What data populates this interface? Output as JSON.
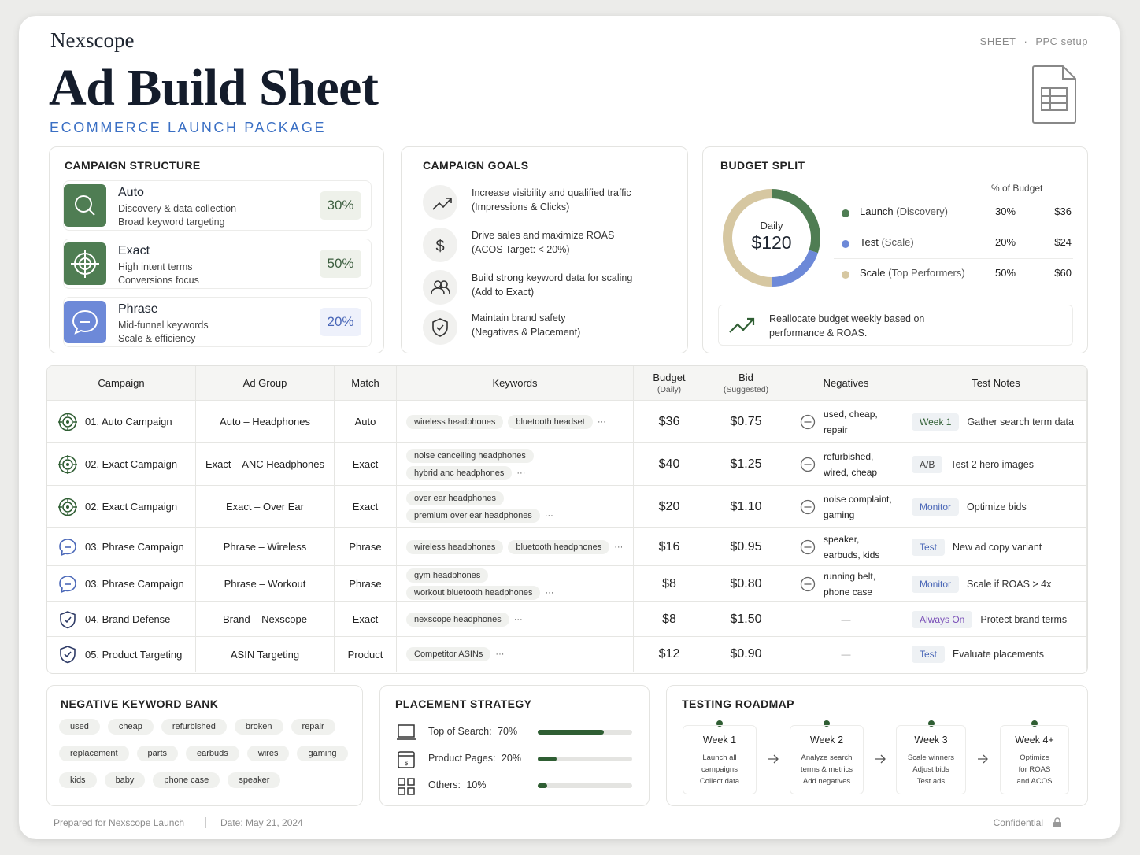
{
  "header": {
    "brand": "Nexscope",
    "title": "Ad Build Sheet",
    "subtitle": "ECOMMERCE LAUNCH PACKAGE",
    "meta": [
      "SHEET",
      "·",
      "PPC setup"
    ]
  },
  "campaign_structure": {
    "title": "CAMPAIGN STRUCTURE",
    "items": [
      {
        "name": "Auto",
        "lines": [
          "Discovery & data collection",
          "Broad keyword targeting"
        ],
        "share": "30%",
        "color": "#4f7d53"
      },
      {
        "name": "Exact",
        "lines": [
          "High intent terms",
          "Conversions focus"
        ],
        "share": "50%",
        "color": "#4f7d53"
      },
      {
        "name": "Phrase",
        "lines": [
          "Mid-funnel keywords",
          "Scale & efficiency"
        ],
        "share": "20%",
        "color": "#6d89d8"
      }
    ]
  },
  "campaign_goals": {
    "title": "CAMPAIGN GOALS",
    "items": [
      [
        "Increase visibility and qualified traffic",
        "(Impressions & Clicks)"
      ],
      [
        "Drive sales and maximize ROAS",
        "(ACOS Target: < 20%)"
      ],
      [
        "Build strong keyword data for scaling",
        "(Add to Exact)"
      ],
      [
        "Maintain brand safety",
        "(Negatives & Placement)"
      ]
    ]
  },
  "budget_split": {
    "title": "BUDGET SPLIT",
    "center_label": "Daily",
    "total": "$120",
    "column_header": "% of Budget",
    "segments": [
      {
        "name": "Launch",
        "detail": "(Discovery)",
        "color": "#4f7d53",
        "value": 30,
        "value_label": "30%",
        "amount": "$36"
      },
      {
        "name": "Test",
        "detail": "(Scale)",
        "color": "#6d89d8",
        "value": 20,
        "value_label": "20%",
        "amount": "$24"
      },
      {
        "name": "Scale",
        "detail": "(Top Performers)",
        "color": "#d6c7a1",
        "value": 50,
        "value_label": "50%",
        "amount": "$60"
      }
    ],
    "note": [
      "Reallocate budget weekly based on",
      "performance & ROAS."
    ]
  },
  "table": {
    "columns": [
      {
        "label": "Campaign"
      },
      {
        "label": "Ad Group"
      },
      {
        "label": "Match"
      },
      {
        "label": "Keywords"
      },
      {
        "label": "Budget",
        "sub": "(Daily)"
      },
      {
        "label": "Bid",
        "sub": "(Suggested)"
      },
      {
        "label": "Negatives"
      },
      {
        "label": "Test Notes"
      }
    ],
    "rows": [
      {
        "campaign": "01. Auto Campaign",
        "ad_group": "Auto – Headphones",
        "match": "Auto",
        "keywords": [
          "wireless headphones",
          "bluetooth headset"
        ],
        "more": "···",
        "budget": "$36",
        "bid": "$0.75",
        "negatives": "used, cheap, repair",
        "tag": "Week 1",
        "tag_color": "#2f5e33",
        "note": "Gather search term data"
      },
      {
        "campaign": "02. Exact Campaign",
        "ad_group": "Exact – ANC Headphones",
        "match": "Exact",
        "keywords": [
          "noise cancelling headphones",
          "hybrid anc headphones"
        ],
        "more": "···",
        "budget": "$40",
        "bid": "$1.25",
        "negatives": "refurbished, wired, cheap",
        "tag": "A/B",
        "tag_color": "#444444",
        "note": "Test 2 hero images"
      },
      {
        "campaign": "02. Exact Campaign",
        "ad_group": "Exact – Over Ear",
        "match": "Exact",
        "keywords": [
          "over ear headphones",
          "premium over ear headphones"
        ],
        "more": "···",
        "budget": "$20",
        "bid": "$1.10",
        "negatives": "noise complaint, gaming",
        "tag": "Monitor",
        "tag_color": "#4b68b8",
        "note": "Optimize bids"
      },
      {
        "campaign": "03. Phrase Campaign",
        "ad_group": "Phrase – Wireless",
        "match": "Phrase",
        "keywords": [
          "wireless headphones",
          "bluetooth headphones"
        ],
        "more": "···",
        "budget": "$16",
        "bid": "$0.95",
        "negatives": "speaker, earbuds, kids",
        "tag": "Test",
        "tag_color": "#4b68b8",
        "note": "New ad copy variant"
      },
      {
        "campaign": "03. Phrase Campaign",
        "ad_group": "Phrase – Workout",
        "match": "Phrase",
        "keywords": [
          "gym headphones",
          "workout bluetooth headphones"
        ],
        "more": "···",
        "budget": "$8",
        "bid": "$0.80",
        "negatives": "running belt, phone case",
        "tag": "Monitor",
        "tag_color": "#4b68b8",
        "note": "Scale if ROAS > 4x"
      },
      {
        "campaign": "04. Brand Defense",
        "ad_group": "Brand – Nexscope",
        "match": "Exact",
        "keywords": [
          "nexscope headphones"
        ],
        "more": "···",
        "budget": "$8",
        "bid": "$1.50",
        "negatives": "—",
        "tag": "Always On",
        "tag_color": "#7a4fb8",
        "note": "Protect brand terms"
      },
      {
        "campaign": "05. Product Targeting",
        "ad_group": "ASIN Targeting",
        "match": "Product",
        "keywords": [
          "Competitor ASINs"
        ],
        "more": "···",
        "budget": "$12",
        "bid": "$0.90",
        "negatives": "—",
        "tag": "Test",
        "tag_color": "#4b68b8",
        "note": "Evaluate placements"
      }
    ]
  },
  "negative_bank": {
    "title": "NEGATIVE KEYWORD BANK",
    "keywords": [
      "used",
      "cheap",
      "refurbished",
      "broken",
      "repair",
      "replacement",
      "parts",
      "earbuds",
      "wires",
      "gaming",
      "kids",
      "baby",
      "phone case",
      "speaker"
    ]
  },
  "placement": {
    "title": "PLACEMENT STRATEGY",
    "items": [
      {
        "label": "Top of Search:",
        "value": 70,
        "value_label": "70%"
      },
      {
        "label": "Product Pages:",
        "value": 20,
        "value_label": "20%"
      },
      {
        "label": "Others:",
        "value": 10,
        "value_label": "10%"
      }
    ]
  },
  "roadmap": {
    "title": "TESTING ROADMAP",
    "steps": [
      {
        "title": "Week 1",
        "lines": [
          "Launch all",
          "campaigns",
          "Collect data"
        ]
      },
      {
        "title": "Week 2",
        "lines": [
          "Analyze search",
          "terms & metrics",
          "Add negatives"
        ]
      },
      {
        "title": "Week 3",
        "lines": [
          "Scale winners",
          "Adjust bids",
          "Test ads"
        ]
      },
      {
        "title": "Week 4+",
        "lines": [
          "Optimize",
          "for ROAS",
          "and ACOS"
        ]
      }
    ]
  },
  "footer": {
    "prepared": "Prepared for Nexscope Launch",
    "date": "Date: May 21, 2024",
    "confidential": "Confidential"
  }
}
